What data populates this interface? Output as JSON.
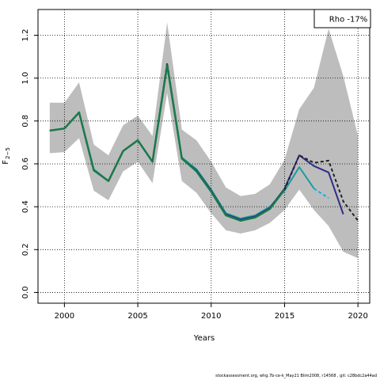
{
  "chart_data": {
    "type": "line",
    "title": "",
    "xlabel": "Years",
    "ylabel": "F",
    "ylabel_subscript": "2−5",
    "xlim": [
      1998.2,
      2020.8
    ],
    "ylim": [
      -0.05,
      1.32
    ],
    "x_ticks": [
      2000,
      2005,
      2010,
      2015,
      2020
    ],
    "x_tick_labels": [
      "2000",
      "2005",
      "2010",
      "2015",
      "2020"
    ],
    "y_ticks": [
      0.0,
      0.2,
      0.4,
      0.6,
      0.8,
      1.0,
      1.2
    ],
    "y_tick_labels": [
      "0.0",
      "0.2",
      "0.4",
      "0.6",
      "0.8",
      "1.0",
      "1.2"
    ],
    "grid": true,
    "legend": {
      "placement": "top-right",
      "text": "Rho -17%"
    },
    "band": {
      "x": [
        1999,
        2000,
        2001,
        2002,
        2003,
        2004,
        2005,
        2006,
        2007,
        2008,
        2009,
        2010,
        2011,
        2012,
        2013,
        2014,
        2015,
        2016,
        2017,
        2018,
        2019,
        2020
      ],
      "upper": [
        0.885,
        0.885,
        0.98,
        0.69,
        0.64,
        0.78,
        0.825,
        0.73,
        1.26,
        0.76,
        0.71,
        0.61,
        0.49,
        0.45,
        0.46,
        0.505,
        0.62,
        0.855,
        0.955,
        1.23,
        1.01,
        0.73
      ],
      "lower": [
        0.65,
        0.655,
        0.72,
        0.475,
        0.43,
        0.565,
        0.61,
        0.51,
        0.93,
        0.52,
        0.465,
        0.37,
        0.29,
        0.275,
        0.29,
        0.325,
        0.385,
        0.48,
        0.385,
        0.31,
        0.19,
        0.16
      ]
    },
    "series": [
      {
        "color": "#00b4e6",
        "style": "dashed",
        "x": [
          2017,
          2018
        ],
        "values": [
          0.485,
          0.44
        ]
      },
      {
        "color": "#1a9e9a",
        "style": "solid",
        "x": [
          1999,
          2000,
          2001,
          2002,
          2003,
          2004,
          2005,
          2006,
          2007,
          2008,
          2009,
          2010,
          2011,
          2012,
          2013,
          2014,
          2015,
          2016,
          2017
        ],
        "values": [
          0.755,
          0.765,
          0.84,
          0.575,
          0.52,
          0.66,
          0.71,
          0.61,
          1.065,
          0.63,
          0.575,
          0.48,
          0.37,
          0.345,
          0.36,
          0.4,
          0.475,
          0.585,
          0.485
        ]
      },
      {
        "color": "#2d2d8c",
        "style": "solid",
        "x": [
          1999,
          2000,
          2001,
          2002,
          2003,
          2004,
          2005,
          2006,
          2007,
          2008,
          2009,
          2010,
          2011,
          2012,
          2013,
          2014,
          2015,
          2016,
          2017,
          2018,
          2019
        ],
        "values": [
          0.755,
          0.765,
          0.84,
          0.57,
          0.52,
          0.66,
          0.71,
          0.61,
          1.065,
          0.625,
          0.57,
          0.475,
          0.365,
          0.34,
          0.355,
          0.395,
          0.485,
          0.64,
          0.59,
          0.56,
          0.365
        ]
      },
      {
        "color": "#222222",
        "style": "dashed",
        "x": [
          1999,
          2000,
          2001,
          2002,
          2003,
          2004,
          2005,
          2006,
          2007,
          2008,
          2009,
          2010,
          2011,
          2012,
          2013,
          2014,
          2015,
          2016,
          2017,
          2018,
          2019,
          2020
        ],
        "values": [
          0.755,
          0.765,
          0.84,
          0.57,
          0.52,
          0.66,
          0.71,
          0.61,
          1.07,
          0.625,
          0.565,
          0.47,
          0.36,
          0.335,
          0.35,
          0.39,
          0.48,
          0.64,
          0.605,
          0.615,
          0.425,
          0.335
        ]
      },
      {
        "color": "#1a7a4a",
        "style": "solid",
        "x": [
          1999,
          2000,
          2001,
          2002,
          2003,
          2004,
          2005,
          2006,
          2007,
          2008,
          2009,
          2010,
          2011,
          2012,
          2013,
          2014,
          2015
        ],
        "values": [
          0.755,
          0.765,
          0.84,
          0.57,
          0.52,
          0.66,
          0.71,
          0.61,
          1.06,
          0.625,
          0.565,
          0.47,
          0.36,
          0.335,
          0.35,
          0.39,
          0.48
        ]
      }
    ]
  },
  "footer": {
    "text": "stockassessment.org,  whg.7b-ce-k_May21  Blim2008,  r14568  ,  git:  c28bdc2a44ad"
  }
}
